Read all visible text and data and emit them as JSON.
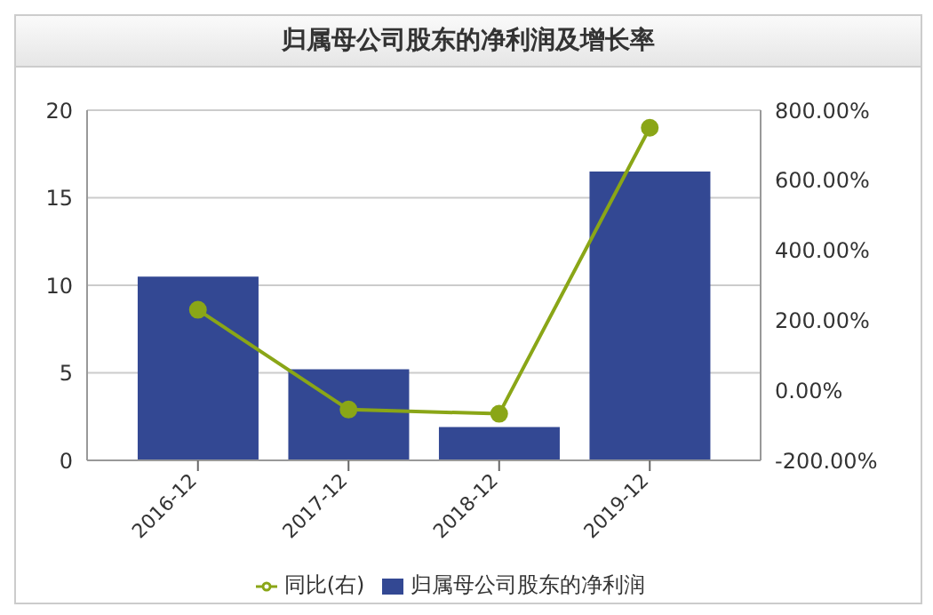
{
  "chart_data": {
    "type": "bar",
    "title": "归属母公司股东的净利润及增长率",
    "categories": [
      "2016-12",
      "2017-12",
      "2018-12",
      "2019-12"
    ],
    "series": [
      {
        "name": "归属母公司股东的净利润",
        "color": "#334893",
        "values": [
          10.5,
          5.2,
          1.9,
          16.5
        ]
      },
      {
        "name": "同比(右)",
        "type": "line",
        "axis": "y2",
        "color": "#8aa617",
        "values": [
          230,
          -55,
          -67,
          750
        ]
      }
    ],
    "ylim": [
      0,
      20
    ],
    "yticks": [
      0,
      5,
      10,
      15,
      20
    ],
    "y2lim": [
      -200,
      800
    ],
    "y2ticks": [
      {
        "value": -200,
        "label": "-200.00%"
      },
      {
        "value": 0,
        "label": "0.00%"
      },
      {
        "value": 200,
        "label": "200.00%"
      },
      {
        "value": 400,
        "label": "400.00%"
      },
      {
        "value": 600,
        "label": "600.00%"
      },
      {
        "value": 800,
        "label": "800.00%"
      }
    ],
    "grid": "y",
    "legend": "bottom",
    "marker": "circle",
    "line_style": "solid"
  }
}
